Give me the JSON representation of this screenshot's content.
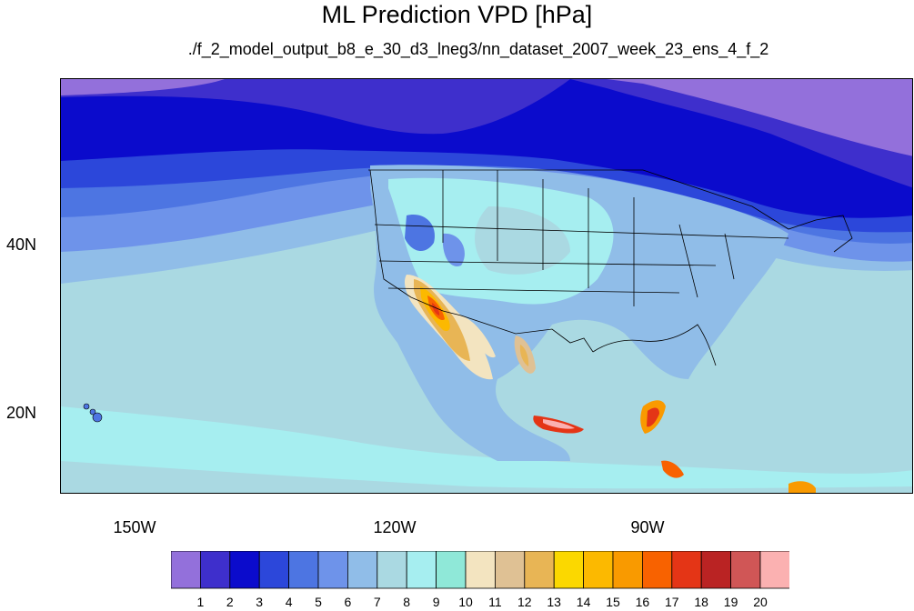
{
  "title": "ML Prediction VPD [hPa]",
  "subtitle": "./f_2_model_output_b8_e_30_d3_lneg3/nn_dataset_2007_week_23_ens_4_f_2",
  "map": {
    "lon_range": [
      -160,
      -60
    ],
    "lat_range": [
      11,
      60
    ],
    "lon_ticks": [
      "150W",
      "120W",
      "90W"
    ],
    "lat_ticks": [
      "40N",
      "20N"
    ]
  },
  "colorbar": {
    "labels": [
      "1",
      "2",
      "3",
      "4",
      "5",
      "6",
      "7",
      "8",
      "9",
      "10",
      "11",
      "12",
      "13",
      "14",
      "15",
      "16",
      "17",
      "18",
      "19",
      "20"
    ],
    "colors": [
      "#9370db",
      "#3e2fcc",
      "#0b0bcc",
      "#2c47da",
      "#4d75e2",
      "#6e93ea",
      "#90bde8",
      "#aad9e2",
      "#a6eef0",
      "#8fe8d8",
      "#f3e4c0",
      "#dfc194",
      "#e8b555",
      "#fbd800",
      "#fcb900",
      "#f99a00",
      "#f86200",
      "#e43516",
      "#ba2323",
      "#d05656",
      "#fbb1b1"
    ]
  }
}
